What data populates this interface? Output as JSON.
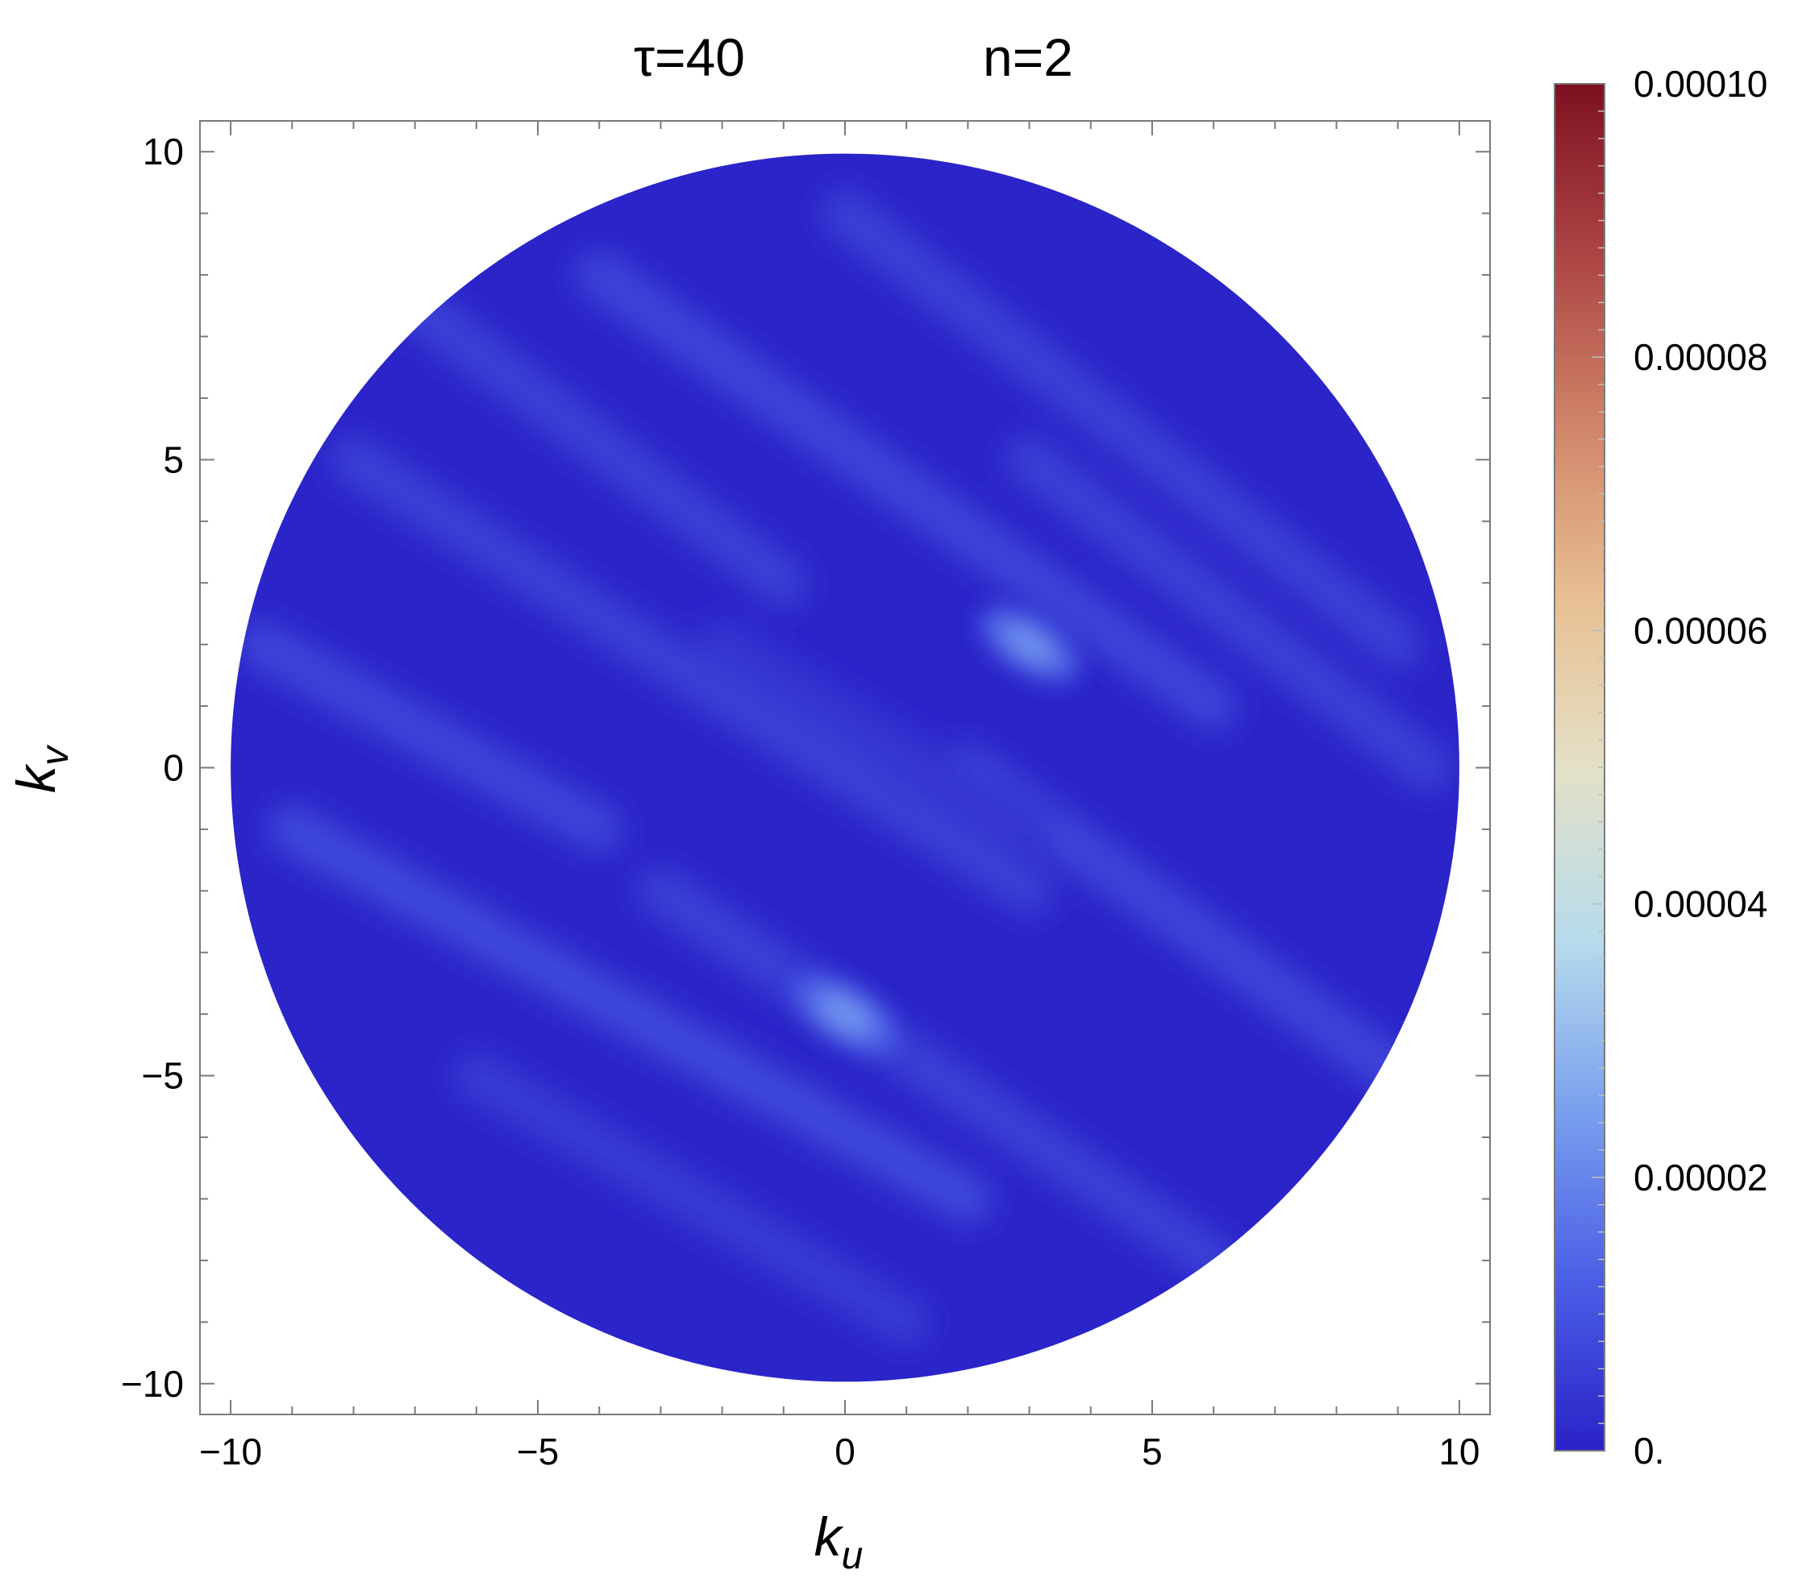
{
  "chart_data": {
    "type": "heatmap",
    "title": {
      "tau_part": "τ=40",
      "n_part": "n=2"
    },
    "xlabel": {
      "main": "k",
      "sub": "u"
    },
    "ylabel": {
      "main": "k",
      "sub": "v"
    },
    "xlim": [
      -10.5,
      10.5
    ],
    "ylim": [
      -10.5,
      10.5
    ],
    "x_ticks": [
      {
        "value": -10,
        "label": "−10"
      },
      {
        "value": -5,
        "label": "−5"
      },
      {
        "value": 0,
        "label": "0"
      },
      {
        "value": 5,
        "label": "5"
      },
      {
        "value": 10,
        "label": "10"
      }
    ],
    "y_ticks": [
      {
        "value": 10,
        "label": "10"
      },
      {
        "value": 5,
        "label": "5"
      },
      {
        "value": 0,
        "label": "0"
      },
      {
        "value": -5,
        "label": "−5"
      },
      {
        "value": -10,
        "label": "−10"
      }
    ],
    "domain": {
      "shape": "disk",
      "radius": 10
    },
    "colorbar": {
      "min": 0,
      "max": 0.0001,
      "ticks": [
        {
          "value": 0,
          "label": "0."
        },
        {
          "value": 2e-05,
          "label": "0.00002"
        },
        {
          "value": 4e-05,
          "label": "0.00004"
        },
        {
          "value": 6e-05,
          "label": "0.00006"
        },
        {
          "value": 8e-05,
          "label": "0.00008"
        },
        {
          "value": 0.0001,
          "label": "0.00010"
        }
      ],
      "colors": [
        "#2a22c8",
        "#4b5ee6",
        "#7aa0ee",
        "#b8dcec",
        "#e4e0c6",
        "#e8bf92",
        "#d08468",
        "#ac4444",
        "#7d1020"
      ]
    },
    "base_value": 5e-07,
    "stripes": [
      {
        "x1": -9,
        "y1": 9,
        "x2": -1,
        "y2": 3,
        "value": 6e-06
      },
      {
        "x1": -4,
        "y1": 8,
        "x2": 6,
        "y2": 1,
        "value": 7e-06
      },
      {
        "x1": 0,
        "y1": 9,
        "x2": 9,
        "y2": 2,
        "value": 6e-06
      },
      {
        "x1": -8,
        "y1": 5,
        "x2": 3,
        "y2": -2,
        "value": 6e-06
      },
      {
        "x1": -9.5,
        "y1": 2,
        "x2": -4,
        "y2": -1,
        "value": 7e-06
      },
      {
        "x1": -9,
        "y1": -1,
        "x2": 2,
        "y2": -7,
        "value": 8e-06
      },
      {
        "x1": -3,
        "y1": -2,
        "x2": 6,
        "y2": -8,
        "value": 6e-06
      },
      {
        "x1": 2,
        "y1": 0,
        "x2": 9,
        "y2": -5,
        "value": 7e-06
      },
      {
        "x1": -6,
        "y1": -5,
        "x2": 1,
        "y2": -9,
        "value": 5e-06
      },
      {
        "x1": 3,
        "y1": 5,
        "x2": 9.5,
        "y2": 0,
        "value": 6e-06
      },
      {
        "x1": -2,
        "y1": 2,
        "x2": 3,
        "y2": -1,
        "value": 4e-06
      }
    ],
    "peaks": [
      {
        "x": 3,
        "y": 2,
        "value": 2.2e-05
      },
      {
        "x": 0,
        "y": -4,
        "value": 2.3e-05
      }
    ]
  }
}
